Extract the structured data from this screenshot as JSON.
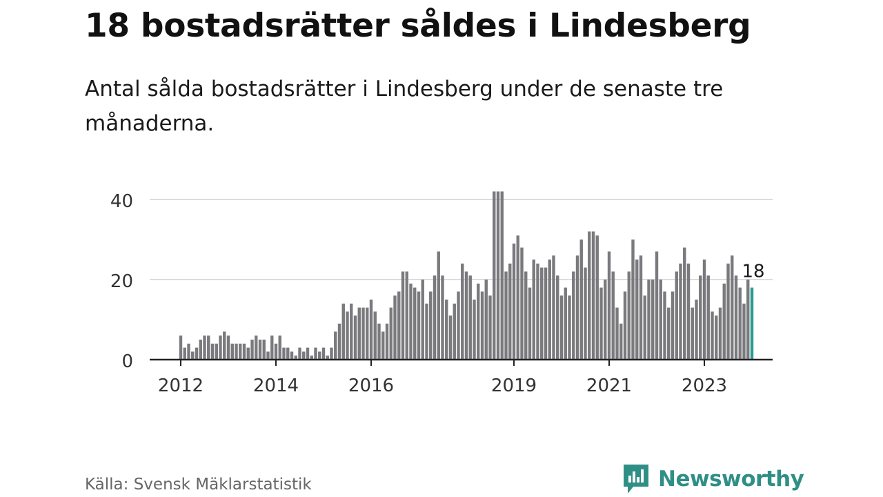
{
  "title": "18 bostadsrätter såldes i Lindesberg",
  "subtitle": "Antal sålda bostadsrätter i Lindesberg under de senaste tre månaderna.",
  "source": "Källa: Svensk Mäklarstatistik",
  "brand": {
    "name": "Newsworthy",
    "icon": "newsworthy-logo-icon"
  },
  "colors": {
    "bar": "#7a7a7e",
    "highlight": "#2a9d93",
    "grid": "#dcdcdc",
    "axis": "#222222",
    "brand": "#2f8f86"
  },
  "chart_data": {
    "type": "bar",
    "x_start": "2012-01",
    "x_ticks": [
      "2012",
      "2014",
      "2016",
      "2019",
      "2021",
      "2023"
    ],
    "y_ticks": [
      0,
      20,
      40
    ],
    "ylim": [
      0,
      42
    ],
    "grid": true,
    "highlight_last": true,
    "last_label": "18",
    "values": [
      6,
      3,
      4,
      2,
      3,
      5,
      6,
      6,
      4,
      4,
      6,
      7,
      6,
      4,
      4,
      4,
      4,
      3,
      5,
      6,
      5,
      5,
      2,
      6,
      4,
      6,
      3,
      3,
      2,
      1,
      3,
      2,
      3,
      1,
      3,
      2,
      3,
      1,
      3,
      7,
      9,
      14,
      12,
      14,
      11,
      13,
      13,
      13,
      15,
      12,
      9,
      7,
      9,
      13,
      16,
      17,
      22,
      22,
      19,
      18,
      17,
      20,
      14,
      17,
      21,
      27,
      21,
      15,
      11,
      14,
      17,
      24,
      22,
      21,
      15,
      19,
      17,
      20,
      16,
      42,
      42,
      42,
      22,
      24,
      29,
      31,
      28,
      22,
      18,
      25,
      24,
      23,
      23,
      25,
      26,
      21,
      16,
      18,
      16,
      22,
      26,
      30,
      23,
      32,
      32,
      31,
      18,
      20,
      27,
      22,
      13,
      9,
      17,
      22,
      30,
      25,
      26,
      16,
      20,
      20,
      27,
      20,
      17,
      13,
      17,
      22,
      24,
      28,
      24,
      13,
      15,
      21,
      25,
      21,
      12,
      11,
      13,
      19,
      24,
      26,
      21,
      18,
      14,
      20,
      18
    ]
  }
}
